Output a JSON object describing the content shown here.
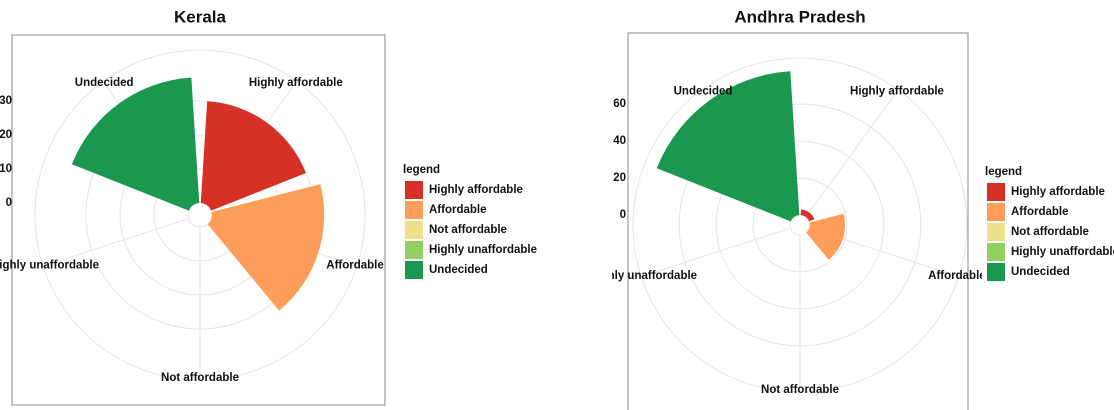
{
  "chart_data": [
    {
      "type": "bar",
      "polar": true,
      "title": "Kerala",
      "categories": [
        "Highly affordable",
        "Affordable",
        "Not affordable",
        "Highly unaffordable",
        "Undecided"
      ],
      "values": [
        30,
        33,
        0,
        0,
        37
      ],
      "colors": [
        "#d73027",
        "#fc9d59",
        "#eee08b",
        "#91cf60",
        "#1a9850"
      ],
      "legend_title": "legend",
      "ylim": [
        0,
        45
      ],
      "yticks": [
        0,
        10,
        20,
        30
      ],
      "grid": true
    },
    {
      "type": "bar",
      "polar": true,
      "title": "Andhra Pradesh",
      "categories": [
        "Highly affordable",
        "Affordable",
        "Not affordable",
        "Highly unaffordable",
        "Undecided"
      ],
      "values": [
        3,
        19,
        0,
        0,
        78
      ],
      "colors": [
        "#d73027",
        "#fc9d59",
        "#eee08b",
        "#91cf60",
        "#1a9850"
      ],
      "legend_title": "legend",
      "ylim": [
        0,
        85
      ],
      "yticks": [
        0,
        20,
        40,
        60
      ],
      "grid": true
    }
  ]
}
